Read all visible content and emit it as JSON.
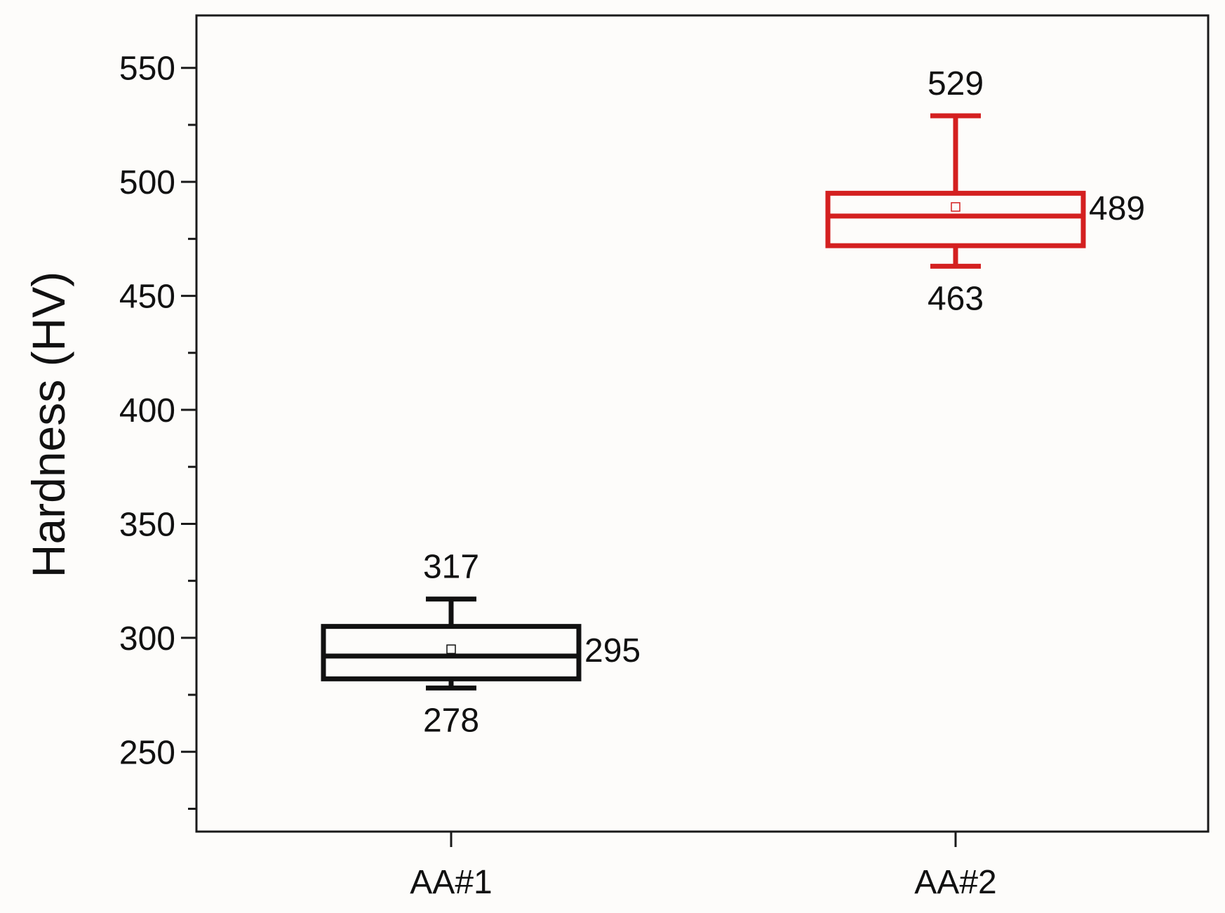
{
  "chart_data": {
    "type": "box",
    "ylabel": "Hardness (HV)",
    "ylim": [
      215,
      573
    ],
    "yticks": [
      250,
      300,
      350,
      400,
      450,
      500,
      550
    ],
    "categories": [
      "AA#1",
      "AA#2"
    ],
    "boxes": [
      {
        "category": "AA#1",
        "color": "#111111",
        "min": 278,
        "q1": 282,
        "median": 292,
        "q3": 305,
        "max": 317,
        "mean": 295,
        "labels": {
          "max": "317",
          "mean": "295",
          "min": "278"
        }
      },
      {
        "category": "AA#2",
        "color": "#d42020",
        "min": 463,
        "q1": 472,
        "median": 485,
        "q3": 495,
        "max": 529,
        "mean": 489,
        "labels": {
          "max": "529",
          "mean": "489",
          "min": "463"
        }
      }
    ],
    "grid": false,
    "legend": "none"
  }
}
